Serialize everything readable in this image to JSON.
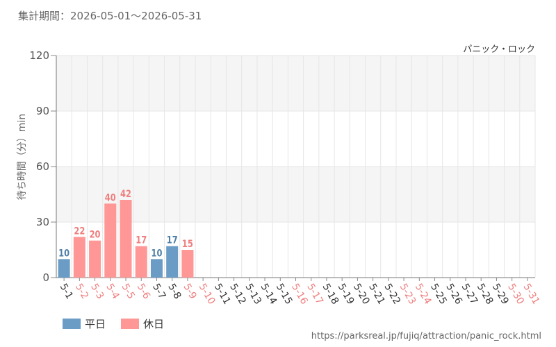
{
  "chart_data": {
    "type": "bar",
    "period_text": "集計期間：2026-05-01～2026-05-31",
    "subtitle": "パニック・ロック",
    "ylabel": "待ち時間（分）min",
    "ylim": [
      0,
      120
    ],
    "yticks": [
      0,
      30,
      60,
      90,
      120
    ],
    "grid": true,
    "bands": true,
    "legend_position": "bottom-left",
    "source": "https://parksreal.jp/fujiq/attraction/panic_rock.html",
    "colors": {
      "weekday": "#6a9cc6",
      "holiday": "#ff9797",
      "weekday_label": "#4f7fa8",
      "holiday_label": "#f07e7e",
      "band": "#f5f5f5",
      "grid": "#e6e6e6"
    },
    "series": [
      {
        "name": "平日",
        "key": "weekday"
      },
      {
        "name": "休日",
        "key": "holiday"
      }
    ],
    "categories": [
      "5-1",
      "5-2",
      "5-3",
      "5-4",
      "5-5",
      "5-6",
      "5-7",
      "5-8",
      "5-9",
      "5-10",
      "5-11",
      "5-12",
      "5-13",
      "5-14",
      "5-15",
      "5-16",
      "5-17",
      "5-18",
      "5-19",
      "5-20",
      "5-21",
      "5-22",
      "5-23",
      "5-24",
      "5-25",
      "5-26",
      "5-27",
      "5-28",
      "5-29",
      "5-30",
      "5-31"
    ],
    "day_type": [
      "weekday",
      "holiday",
      "holiday",
      "holiday",
      "holiday",
      "holiday",
      "weekday",
      "weekday",
      "holiday",
      "holiday",
      "weekday",
      "weekday",
      "weekday",
      "weekday",
      "weekday",
      "holiday",
      "holiday",
      "weekday",
      "weekday",
      "weekday",
      "weekday",
      "weekday",
      "holiday",
      "holiday",
      "weekday",
      "weekday",
      "weekday",
      "weekday",
      "weekday",
      "holiday",
      "holiday"
    ],
    "values": [
      10,
      22,
      20,
      40,
      42,
      17,
      10,
      17,
      15,
      null,
      null,
      null,
      null,
      null,
      null,
      null,
      null,
      null,
      null,
      null,
      null,
      null,
      null,
      null,
      null,
      null,
      null,
      null,
      null,
      null,
      null
    ]
  }
}
